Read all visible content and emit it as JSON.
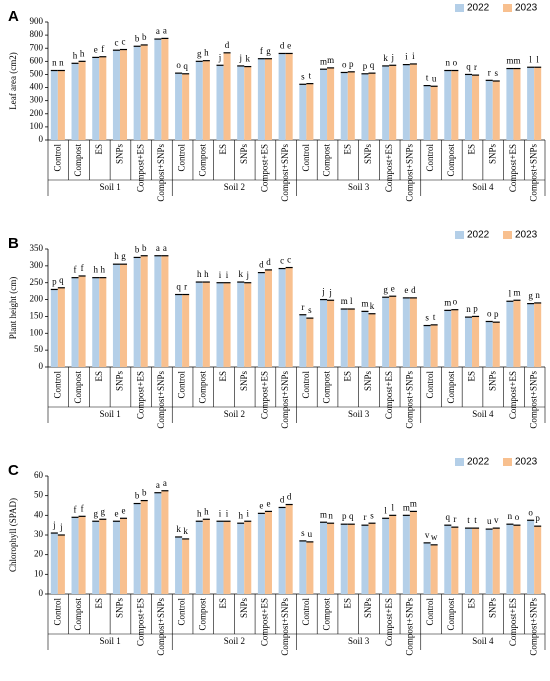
{
  "chart_data": [
    {
      "type": "bar",
      "panel_label": "A",
      "ylabel": "Leaf area (cm2)",
      "categories": [
        "Control",
        "Compost",
        "ES",
        "SNPs",
        "Compost+ES",
        "Compost+SNPs",
        "Control",
        "Compost",
        "ES",
        "SNPs",
        "Compost+ES",
        "Compost+SNPs",
        "Control",
        "Compost",
        "ES",
        "SNPs",
        "Compost+ES",
        "Compost+SNPs",
        "Control",
        "Compost",
        "ES",
        "SNPs",
        "Compost+ES",
        "Compost+SNPs"
      ],
      "groups": [
        "Soil 1",
        "Soil 2",
        "Soil 3",
        "Soil 4"
      ],
      "ylim": [
        0,
        900
      ],
      "yticks": [
        0,
        100,
        200,
        300,
        400,
        500,
        600,
        700,
        800,
        900
      ],
      "series": [
        {
          "name": "2022",
          "color": "#b4cfe8",
          "values": [
            530,
            585,
            630,
            685,
            715,
            770,
            510,
            600,
            570,
            565,
            620,
            660,
            425,
            540,
            515,
            505,
            565,
            575,
            415,
            530,
            500,
            455,
            545,
            555
          ],
          "letters": [
            "n",
            "h",
            "e",
            "c",
            "b",
            "a",
            "o",
            "g",
            "j",
            "j",
            "f",
            "d",
            "s",
            "m",
            "o",
            "p",
            "k",
            "i",
            "t",
            "n",
            "q",
            "r",
            "m",
            "l"
          ]
        },
        {
          "name": "2023",
          "color": "#f8c08f",
          "values": [
            530,
            600,
            635,
            690,
            725,
            775,
            505,
            605,
            665,
            560,
            620,
            660,
            430,
            550,
            520,
            510,
            570,
            580,
            410,
            530,
            495,
            450,
            545,
            555
          ],
          "letters": [
            "n",
            "h",
            "f",
            "c",
            "b",
            "a",
            "q",
            "h",
            "d",
            "k",
            "g",
            "e",
            "t",
            "m",
            "p",
            "q",
            "j",
            "i",
            "u",
            "o",
            "r",
            "s",
            "m",
            "l"
          ]
        }
      ]
    },
    {
      "type": "bar",
      "panel_label": "B",
      "ylabel": "Plant height (cm)",
      "categories": [
        "Control",
        "Compost",
        "ES",
        "SNPs",
        "Compost+ES",
        "Compost+SNPs",
        "Control",
        "Compost",
        "ES",
        "SNPs",
        "Compost+ES",
        "Compost+SNPs",
        "Control",
        "Compost",
        "ES",
        "SNPs",
        "Compost+ES",
        "Compost+SNPs",
        "Control",
        "Compost",
        "ES",
        "SNPs",
        "Compost+ES",
        "Compost+SNPs"
      ],
      "groups": [
        "Soil 1",
        "Soil 2",
        "Soil 3",
        "Soil 4"
      ],
      "ylim": [
        0,
        350
      ],
      "yticks": [
        0,
        50,
        100,
        150,
        200,
        250,
        300,
        350
      ],
      "series": [
        {
          "name": "2022",
          "color": "#b4cfe8",
          "values": [
            230,
            265,
            265,
            305,
            325,
            330,
            215,
            252,
            250,
            252,
            280,
            292,
            155,
            200,
            172,
            165,
            207,
            205,
            123,
            168,
            148,
            135,
            195,
            188
          ],
          "letters": [
            "p",
            "f",
            "h",
            "h",
            "b",
            "a",
            "q",
            "h",
            "i",
            "k",
            "d",
            "c",
            "r",
            "j",
            "m",
            "m",
            "g",
            "e",
            "s",
            "m",
            "n",
            "o",
            "l",
            "g"
          ]
        },
        {
          "name": "2023",
          "color": "#f8c08f",
          "values": [
            235,
            270,
            265,
            305,
            330,
            330,
            215,
            252,
            250,
            250,
            288,
            295,
            145,
            198,
            172,
            158,
            210,
            205,
            125,
            170,
            150,
            133,
            198,
            190
          ],
          "letters": [
            "q",
            "f",
            "h",
            "g",
            "b",
            "a",
            "r",
            "h",
            "i",
            "j",
            "d",
            "c",
            "s",
            "j",
            "l",
            "k",
            "e",
            "d",
            "t",
            "o",
            "p",
            "p",
            "m",
            "n"
          ]
        }
      ]
    },
    {
      "type": "bar",
      "panel_label": "C",
      "ylabel": "Chlorophyll (SPAD)",
      "categories": [
        "Control",
        "Compost",
        "ES",
        "SNPs",
        "Compost+ES",
        "Compost+SNPs",
        "Control",
        "Compost",
        "ES",
        "SNPs",
        "Compost+ES",
        "Compost+SNPs",
        "Control",
        "Compost",
        "ES",
        "SNPs",
        "Compost+ES",
        "Compost+SNPs",
        "Control",
        "Compost",
        "ES",
        "SNPs",
        "Compost+ES",
        "Compost+SNPs"
      ],
      "groups": [
        "Soil 1",
        "Soil 2",
        "Soil 3",
        "Soil 4"
      ],
      "ylim": [
        0,
        60
      ],
      "yticks": [
        0,
        10,
        20,
        30,
        40,
        50,
        60
      ],
      "series": [
        {
          "name": "2022",
          "color": "#b4cfe8",
          "values": [
            31,
            39,
            37,
            37,
            46,
            51.5,
            29,
            37,
            37,
            36,
            41,
            44,
            27,
            36.5,
            35.5,
            35,
            38.5,
            40,
            26,
            35,
            33.5,
            33,
            35.5,
            37.5
          ],
          "letters": [
            "j",
            "f",
            "g",
            "e",
            "b",
            "a",
            "k",
            "h",
            "i",
            "h",
            "e",
            "d",
            "s",
            "m",
            "p",
            "r",
            "l",
            "m",
            "v",
            "q",
            "t",
            "u",
            "n",
            "o"
          ]
        },
        {
          "name": "2023",
          "color": "#f8c08f",
          "values": [
            30,
            39.5,
            38,
            38.5,
            47.5,
            52.5,
            28,
            38,
            37,
            37,
            42,
            45.5,
            26.5,
            36,
            35.5,
            36,
            40,
            42,
            25,
            34,
            33.5,
            33.5,
            35,
            34.5
          ],
          "letters": [
            "j",
            "f",
            "g",
            "e",
            "b",
            "a",
            "k",
            "h",
            "i",
            "i",
            "e",
            "d",
            "u",
            "n",
            "q",
            "s",
            "l",
            "m",
            "w",
            "r",
            "t",
            "v",
            "o",
            "p"
          ]
        }
      ]
    }
  ]
}
